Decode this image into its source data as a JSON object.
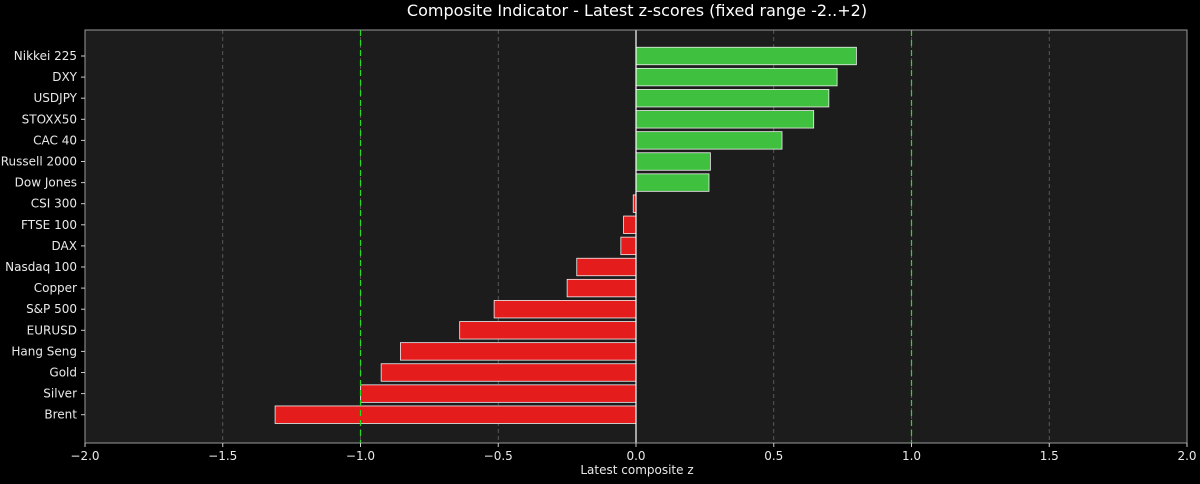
{
  "chart_data": {
    "type": "bar",
    "orientation": "horizontal",
    "title": "Composite Indicator - Latest z-scores (fixed range -2..+2)",
    "xlabel": "Latest composite z",
    "ylabel": "",
    "xlim": [
      -2.0,
      2.0
    ],
    "x_ticks": [
      "−2.0",
      "−1.5",
      "−1.0",
      "−0.5",
      "0.0",
      "0.5",
      "1.0",
      "1.5",
      "2.0"
    ],
    "x_tick_values": [
      -2.0,
      -1.5,
      -1.0,
      -0.5,
      0.0,
      0.5,
      1.0,
      1.5,
      2.0
    ],
    "grid": "vertical dashed",
    "threshold_lines": [
      -1.0,
      1.0
    ],
    "categories": [
      "Nikkei 225",
      "DXY",
      "USDJPY",
      "STOXX50",
      "CAC 40",
      "Russell 2000",
      "Dow Jones",
      "CSI 300",
      "FTSE 100",
      "DAX",
      "Nasdaq 100",
      "Copper",
      "S&P 500",
      "EURUSD",
      "Hang Seng",
      "Gold",
      "Silver",
      "Brent"
    ],
    "values": [
      0.8,
      0.73,
      0.7,
      0.645,
      0.53,
      0.27,
      0.265,
      -0.01,
      -0.045,
      -0.055,
      -0.215,
      -0.25,
      -0.515,
      -0.64,
      -0.855,
      -0.925,
      -1.0,
      -1.31
    ],
    "colors": {
      "positive": "#3fc03f",
      "negative": "#e51c1c",
      "threshold": "#22dd22",
      "grid": "#666666",
      "plot_background": "#1c1c1c",
      "page_background": "#000000",
      "bar_edge": "#f0f0f0"
    }
  }
}
